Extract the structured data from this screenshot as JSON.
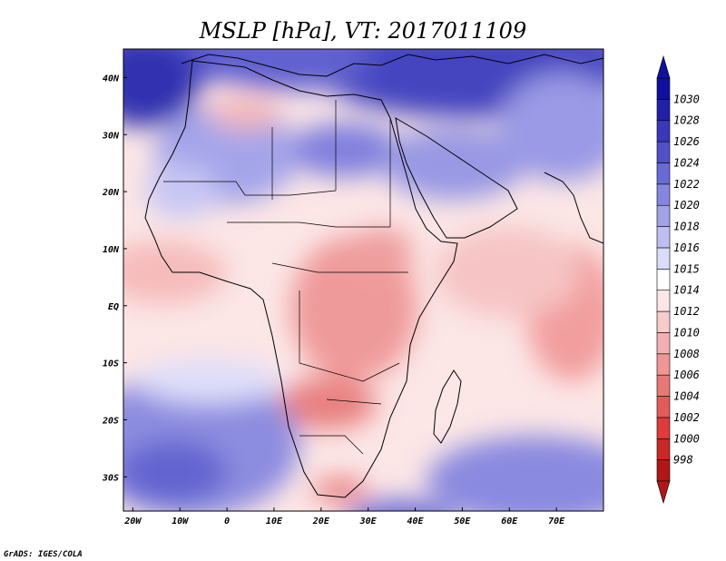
{
  "title": "MSLP [hPa], VT: 2017011109",
  "credit": "GrADS: IGES/COLA",
  "map": {
    "lon_range": [
      -22,
      80
    ],
    "lat_range": [
      -36,
      45
    ],
    "lon_ticks": [
      {
        "value": -20,
        "label": "20W"
      },
      {
        "value": -10,
        "label": "10W"
      },
      {
        "value": 0,
        "label": "0"
      },
      {
        "value": 10,
        "label": "10E"
      },
      {
        "value": 20,
        "label": "20E"
      },
      {
        "value": 30,
        "label": "30E"
      },
      {
        "value": 40,
        "label": "40E"
      },
      {
        "value": 50,
        "label": "50E"
      },
      {
        "value": 60,
        "label": "60E"
      },
      {
        "value": 70,
        "label": "70E"
      }
    ],
    "lat_ticks": [
      {
        "value": 40,
        "label": "40N"
      },
      {
        "value": 30,
        "label": "30N"
      },
      {
        "value": 20,
        "label": "20N"
      },
      {
        "value": 10,
        "label": "10N"
      },
      {
        "value": 0,
        "label": "EQ"
      },
      {
        "value": -10,
        "label": "10S"
      },
      {
        "value": -20,
        "label": "20S"
      },
      {
        "value": -30,
        "label": "30S"
      }
    ]
  },
  "colorbar": {
    "levels": [
      "998",
      "1000",
      "1002",
      "1004",
      "1006",
      "1008",
      "1010",
      "1012",
      "1014",
      "1015",
      "1016",
      "1018",
      "1020",
      "1022",
      "1024",
      "1026",
      "1028",
      "1030"
    ],
    "colors": [
      "#b01818",
      "#c82828",
      "#dc3c3c",
      "#e45a5a",
      "#e87878",
      "#ef9696",
      "#f4b0b0",
      "#f8cccc",
      "#fce6e6",
      "#ffffff",
      "#dcdcfa",
      "#bebef2",
      "#a2a2ea",
      "#8686e0",
      "#6a6ad6",
      "#5050c8",
      "#3838b8",
      "#2020a8",
      "#1010a0"
    ]
  }
}
